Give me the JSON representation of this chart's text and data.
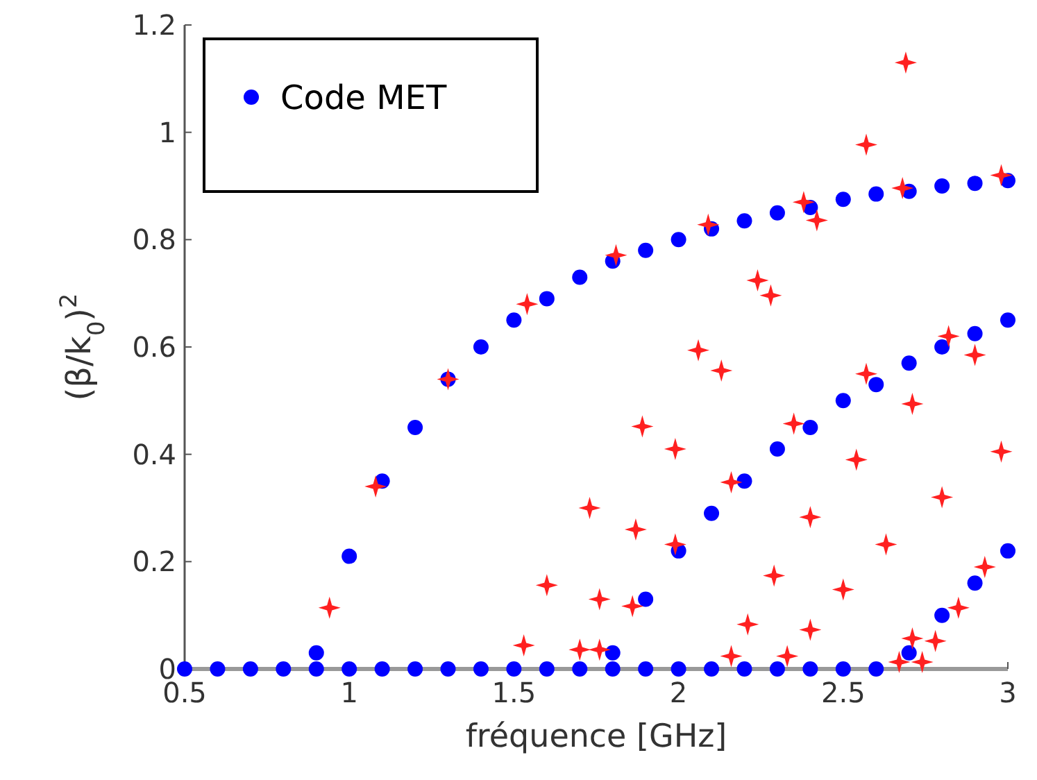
{
  "chart_data": {
    "type": "scatter",
    "xlabel": "fréquence [GHz]",
    "ylabel": "(β/k$_{0}$)$^{2}$",
    "xlim": [
      0.5,
      3
    ],
    "ylim": [
      0,
      1.2
    ],
    "xticks": [
      0.5,
      1,
      1.5,
      2,
      2.5,
      3
    ],
    "yticks": [
      0,
      0.2,
      0.4,
      0.6,
      0.8,
      1,
      1.2
    ],
    "grid": false,
    "legend": "top left",
    "series": [
      {
        "name": "Code MET",
        "color": "#0000ff",
        "marker": "circle",
        "x": [
          0.5,
          0.6,
          0.7,
          0.8,
          0.9,
          1.0,
          1.1,
          1.2,
          1.3,
          1.4,
          1.5,
          1.6,
          1.7,
          1.8,
          1.9,
          2.0,
          2.1,
          2.2,
          2.3,
          2.4,
          2.5,
          2.6,
          0.9,
          1.0,
          1.1,
          1.2,
          1.3,
          1.4,
          1.5,
          1.6,
          1.7,
          1.8,
          1.9,
          2.0,
          2.1,
          2.2,
          2.3,
          2.4,
          2.5,
          2.6,
          2.7,
          2.8,
          2.9,
          3.0,
          1.8,
          1.9,
          2.0,
          2.1,
          2.2,
          2.3,
          2.4,
          2.5,
          2.6,
          2.7,
          2.8,
          2.9,
          3.0,
          2.7,
          2.8,
          2.9,
          3.0
        ],
        "values": [
          0,
          0,
          0,
          0,
          0,
          0,
          0,
          0,
          0,
          0,
          0,
          0,
          0,
          0,
          0,
          0,
          0,
          0,
          0,
          0,
          0,
          0,
          0.03,
          0.21,
          0.35,
          0.45,
          0.54,
          0.6,
          0.65,
          0.69,
          0.73,
          0.76,
          0.78,
          0.8,
          0.82,
          0.835,
          0.85,
          0.86,
          0.875,
          0.885,
          0.89,
          0.9,
          0.905,
          0.91,
          0.03,
          0.13,
          0.22,
          0.29,
          0.35,
          0.41,
          0.45,
          0.5,
          0.53,
          0.57,
          0.6,
          0.625,
          0.65,
          0.03,
          0.1,
          0.16,
          0.22
        ]
      },
      {
        "color": "#ff2020",
        "marker": "star",
        "x": [
          0.94,
          1.08,
          1.3,
          1.54,
          1.73,
          1.6,
          1.53,
          1.7,
          1.76,
          1.76,
          2.69,
          2.57,
          2.68,
          2.98,
          2.38,
          2.42,
          2.09,
          1.81,
          2.24,
          2.28,
          2.82,
          2.9,
          2.57,
          2.06,
          2.13,
          2.71,
          2.35,
          1.89,
          1.99,
          2.54,
          2.98,
          2.16,
          2.8,
          1.87,
          2.4,
          1.99,
          2.63,
          2.29,
          2.93,
          2.5,
          1.86,
          2.85,
          2.21,
          2.4,
          2.71,
          2.78,
          2.16,
          2.33,
          2.67,
          2.74
        ],
        "values": [
          0.114,
          0.34,
          0.54,
          0.68,
          0.3,
          0.156,
          0.044,
          0.036,
          0.13,
          0.036,
          1.13,
          0.977,
          0.896,
          0.92,
          0.87,
          0.836,
          0.828,
          0.771,
          0.724,
          0.696,
          0.62,
          0.585,
          0.55,
          0.594,
          0.556,
          0.494,
          0.457,
          0.452,
          0.41,
          0.39,
          0.405,
          0.348,
          0.32,
          0.26,
          0.283,
          0.232,
          0.232,
          0.174,
          0.19,
          0.148,
          0.117,
          0.114,
          0.083,
          0.073,
          0.057,
          0.052,
          0.024,
          0.024,
          0.013,
          0.013
        ]
      }
    ]
  }
}
